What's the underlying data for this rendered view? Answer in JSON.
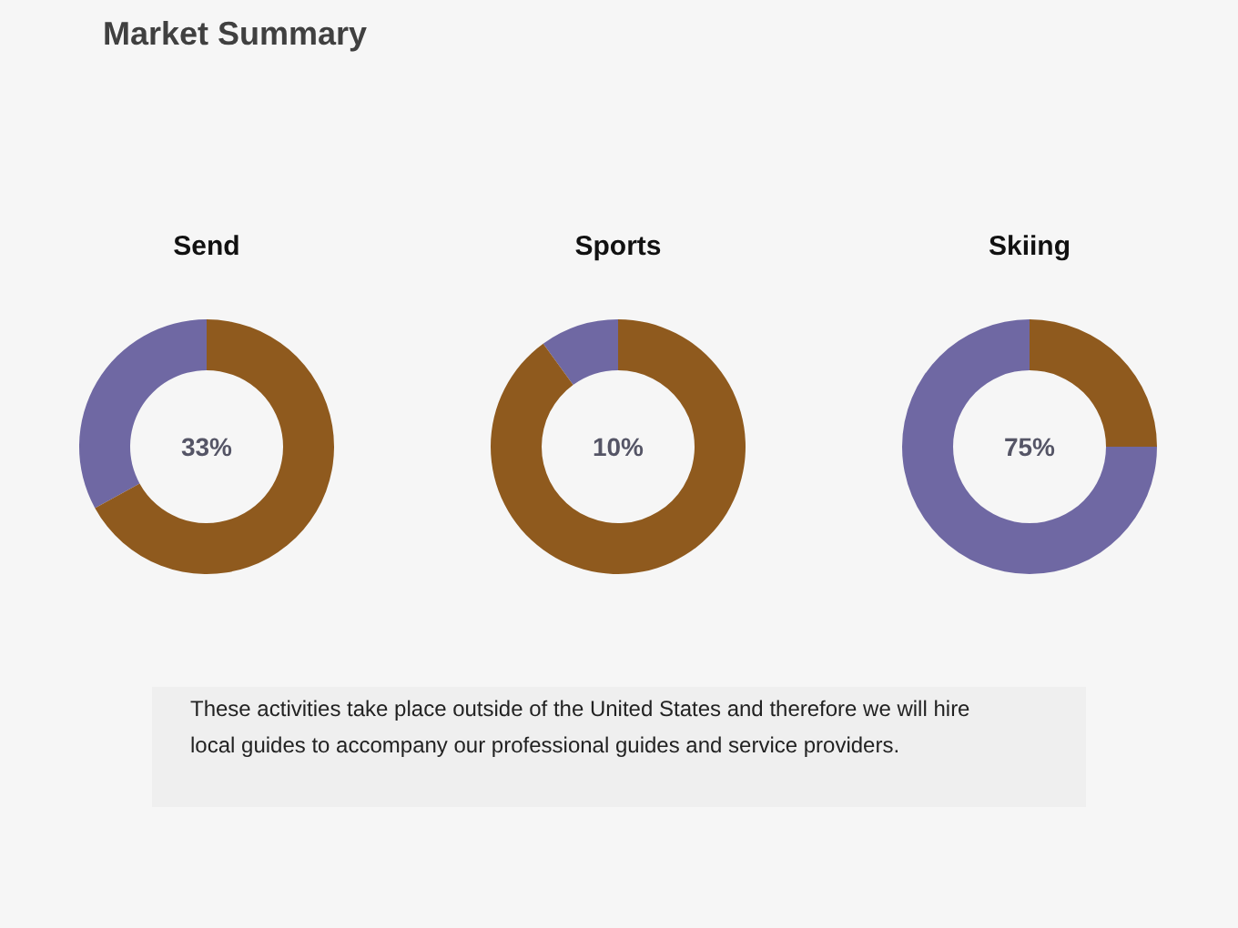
{
  "chart_data": [
    {
      "type": "other",
      "title": "Market Summary"
    },
    {
      "type": "donut",
      "title": "Send",
      "categories": [
        null,
        null
      ],
      "values": [
        33,
        67
      ],
      "colors": [
        "#6f68a3",
        "#8f5a1e"
      ],
      "annotations": [
        "33%"
      ]
    },
    {
      "type": "donut",
      "title": "Sports",
      "categories": [
        null,
        null
      ],
      "values": [
        10,
        90
      ],
      "colors": [
        "#6f68a3",
        "#8f5a1e"
      ],
      "annotations": [
        "10%"
      ]
    },
    {
      "type": "donut",
      "title": "Skiing",
      "categories": [
        null,
        null
      ],
      "values": [
        75,
        25
      ],
      "colors": [
        "#6f68a3",
        "#8f5a1e"
      ],
      "annotations": [
        "75%"
      ]
    },
    {
      "type": "other",
      "annotations": [
        "These activities take place outside of the United States and therefore we will hire local guides to accompany our professional guides and service providers."
      ]
    }
  ]
}
